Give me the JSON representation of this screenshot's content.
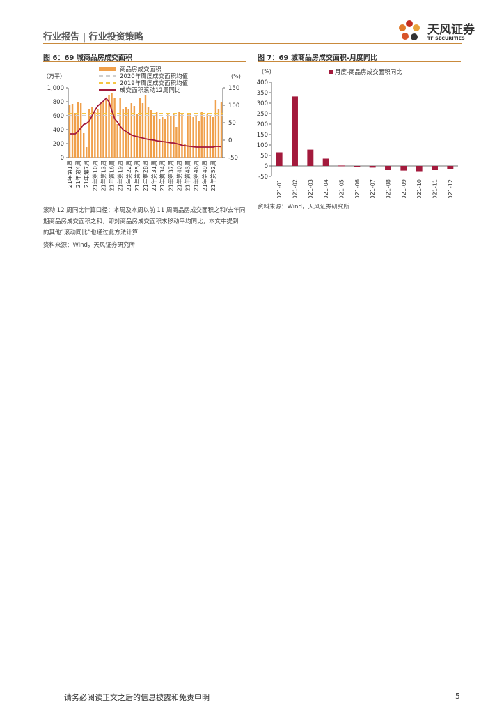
{
  "header": {
    "title": "行业报告 | 行业投资策略",
    "logo_name": "天风证券",
    "logo_en": "TF SECURITIES"
  },
  "figure6": {
    "title": "图 6：69 城商品房成交面积",
    "notes": [
      "滚动 12 周同比计算口径：本周及本周以前 11 周商品房成交面积之和/去年同",
      "期商品房成交面积之和，即对商品房成交面积求移动平均同比，本文中提到",
      "的其他“滚动同比”也通过此方法计算"
    ],
    "source": "资料来源：Wind，天风证券研究所"
  },
  "figure7": {
    "title": "图 7：69 城商品房成交面积-月度同比",
    "source": "资料来源：Wind，天风证券研究所"
  },
  "footer": {
    "disclaimer": "请务必阅读正文之后的信息披露和免责申明",
    "page": "5"
  },
  "colors": {
    "accent": "#c98a3c",
    "bar_orange": "#f0a04b",
    "line_2020": "#cfcfcf",
    "line_2019": "#f5c542",
    "line_rolling": "#a31a3c",
    "bar_maroon": "#a31a3c"
  },
  "chart_data": [
    {
      "type": "bar",
      "ylabel_left": "（万平）",
      "ylabel_right": "(%)",
      "ylim_left": [
        0,
        1000
      ],
      "yticks_left": [
        "0",
        "200",
        "400",
        "600",
        "800",
        "1,000"
      ],
      "ylim_right": [
        -50,
        150
      ],
      "yticks_right": [
        "-50",
        "0",
        "50",
        "100",
        "150"
      ],
      "legend": [
        "商品房成交面积",
        "2020年周度成交面积均值",
        "2019年周度成交面积均值",
        "成交面积滚动12周同比"
      ],
      "x_tick_labels": [
        "21年第1周",
        "21年第4周",
        "21年第7周",
        "21年第10周",
        "21年第13周",
        "21年第16周",
        "21年第19周",
        "21年第22周",
        "21年第25周",
        "21年第28周",
        "21年第31周",
        "21年第34周",
        "21年第37周",
        "21年第40周",
        "21年第43周",
        "21年第46周",
        "21年第49周",
        "21年第52周"
      ],
      "bar_values": [
        760,
        770,
        640,
        800,
        780,
        350,
        150,
        700,
        720,
        650,
        700,
        780,
        800,
        830,
        900,
        920,
        850,
        480,
        850,
        700,
        720,
        690,
        780,
        740,
        620,
        850,
        780,
        900,
        720,
        680,
        600,
        650,
        560,
        580,
        560,
        620,
        600,
        620,
        440,
        660,
        640,
        200,
        630,
        620,
        580,
        600,
        520,
        660,
        580,
        620,
        600,
        580,
        830,
        700,
        800
      ],
      "mean_2020": 600,
      "mean_2019": 630,
      "rolling_yoy": [
        18,
        18,
        18,
        25,
        35,
        45,
        48,
        55,
        70,
        85,
        98,
        105,
        112,
        120,
        110,
        85,
        62,
        52,
        40,
        30,
        25,
        20,
        15,
        12,
        10,
        8,
        6,
        4,
        2,
        1,
        0,
        -2,
        -3,
        -4,
        -5,
        -6,
        -8,
        -8,
        -10,
        -12,
        -15,
        -16,
        -17,
        -18,
        -19,
        -20,
        -20,
        -20,
        -20,
        -20,
        -20,
        -20,
        -18,
        -18,
        -19
      ]
    },
    {
      "type": "bar",
      "ylabel": "(%)",
      "ylim": [
        -50,
        400
      ],
      "yticks": [
        "-50",
        "0",
        "50",
        "100",
        "150",
        "200",
        "250",
        "300",
        "350",
        "400"
      ],
      "legend": [
        "月度-商品房成交面积同比"
      ],
      "categories": [
        "2021-01",
        "2021-02",
        "2021-03",
        "2021-04",
        "2021-05",
        "2021-06",
        "2021-07",
        "2021-08",
        "2021-09",
        "2021-10",
        "2021-11",
        "2021-12"
      ],
      "values": [
        65,
        332,
        78,
        35,
        2,
        -5,
        -8,
        -20,
        -22,
        -25,
        -20,
        -15
      ]
    }
  ]
}
